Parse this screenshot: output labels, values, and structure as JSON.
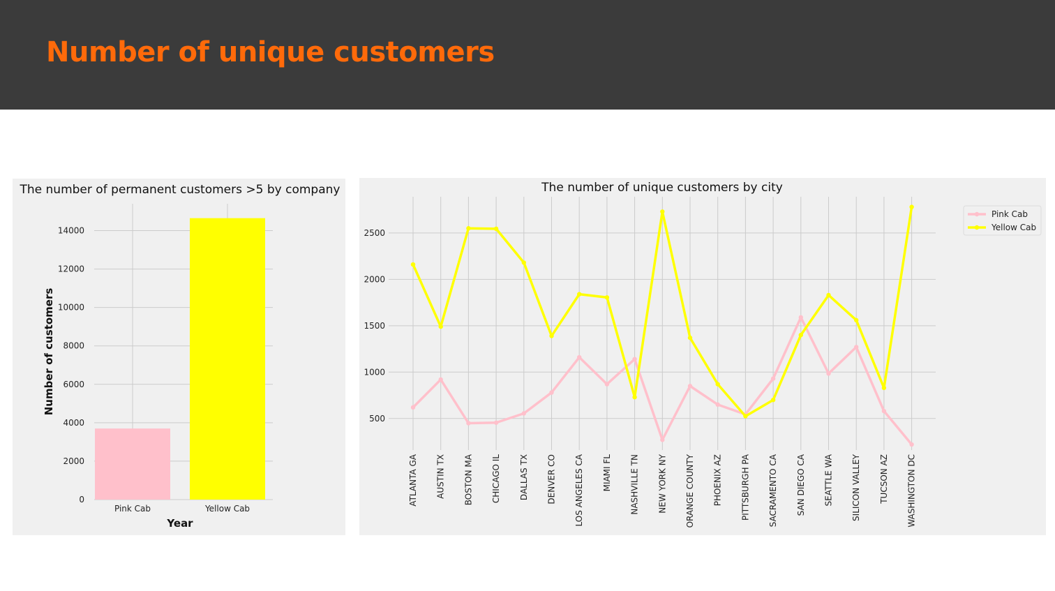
{
  "slide": {
    "title": "Number of unique customers",
    "colors": {
      "header_bg": "#3b3b3b",
      "title": "#ff6a0a"
    }
  },
  "chart_data": [
    {
      "type": "bar",
      "title": "The number of permanent customers >5 by company",
      "xlabel": "Year",
      "ylabel": "Number of customers",
      "categories": [
        "Pink Cab",
        "Yellow Cab"
      ],
      "values": [
        3700,
        14650
      ],
      "colors": [
        "#ffc0cb",
        "#ffff00"
      ],
      "yticks": [
        0,
        2000,
        4000,
        6000,
        8000,
        10000,
        12000,
        14000
      ],
      "ylim": [
        0,
        15400
      ],
      "grid": true
    },
    {
      "type": "line",
      "title": "The number of unique customers by city",
      "categories": [
        "ATLANTA GA",
        "AUSTIN TX",
        "BOSTON MA",
        "CHICAGO IL",
        "DALLAS TX",
        "DENVER CO",
        "LOS ANGELES CA",
        "MIAMI FL",
        "NASHVILLE TN",
        "NEW YORK NY",
        "ORANGE COUNTY",
        "PHOENIX AZ",
        "PITTSBURGH PA",
        "SACRAMENTO CA",
        "SAN DIEGO CA",
        "SEATTLE WA",
        "SILICON VALLEY",
        "TUCSON AZ",
        "WASHINGTON DC"
      ],
      "series": [
        {
          "name": "Pink Cab",
          "color": "#ffc0cb",
          "values": [
            620,
            920,
            450,
            455,
            555,
            780,
            1160,
            870,
            1140,
            270,
            850,
            650,
            545,
            930,
            1590,
            985,
            1270,
            580,
            220
          ]
        },
        {
          "name": "Yellow Cab",
          "color": "#ffff00",
          "values": [
            2160,
            1490,
            2550,
            2545,
            2180,
            1390,
            1840,
            1805,
            730,
            2730,
            1370,
            870,
            525,
            700,
            1400,
            1830,
            1560,
            830,
            2780
          ]
        }
      ],
      "yticks": [
        500,
        1000,
        1500,
        2000,
        2500
      ],
      "ylim": [
        160,
        2890
      ],
      "legend": "top-right",
      "grid": true
    }
  ]
}
